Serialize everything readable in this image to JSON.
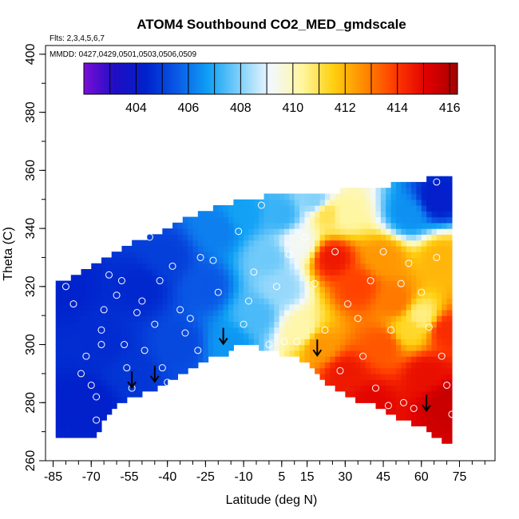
{
  "chart_data": {
    "type": "heatmap",
    "title": "ATOM4 Southbound CO2_MED_gmdscale",
    "subtitle": "Flts: 2,3,4,5,6,7",
    "annotation": "MMDD: 0427,0429,0501,0503,0506,0509",
    "xlabel": "Latitude (deg N)",
    "ylabel": "Theta (C)",
    "xlim": [
      -88,
      89
    ],
    "ylim": [
      260,
      403
    ],
    "x_ticks": [
      -85,
      -70,
      -55,
      -40,
      -25,
      -10,
      5,
      15,
      30,
      45,
      60,
      75
    ],
    "x_tick_labels": [
      "-85",
      "-70",
      "-55",
      "-40",
      "-25",
      "-10",
      "5",
      "15",
      "30",
      "45",
      "60",
      "75"
    ],
    "y_ticks": [
      260,
      280,
      300,
      320,
      340,
      360,
      380,
      400
    ],
    "y_tick_labels": [
      "260",
      "280",
      "300",
      "320",
      "340",
      "360",
      "380",
      "400"
    ],
    "colorbar": {
      "min": 402,
      "max": 416.3,
      "ticks": [
        404,
        406,
        408,
        410,
        412,
        414,
        416
      ],
      "tick_labels": [
        "404",
        "406",
        "408",
        "410",
        "412",
        "414",
        "416"
      ],
      "colors": [
        "#7a0fd6",
        "#1f0dc4",
        "#0022cc",
        "#0a5ae6",
        "#0fa0f5",
        "#7fd0fa",
        "#f2f8ff",
        "#fff6a0",
        "#ffd010",
        "#ff8a00",
        "#ff3a00",
        "#e00000",
        "#a50000"
      ]
    },
    "surface_boundary": {
      "lat": [
        -68,
        -63,
        -57,
        -51,
        -44,
        -37,
        -31,
        -24,
        -17,
        -10,
        -3,
        4,
        10,
        14,
        18,
        22,
        28,
        35,
        42,
        48,
        54,
        60,
        66,
        72
      ],
      "theta": [
        269,
        276,
        281,
        283,
        285,
        289,
        292,
        295,
        297,
        301,
        299,
        297,
        296,
        294,
        291,
        287,
        284,
        281,
        279,
        276,
        274,
        272,
        268,
        266
      ]
    },
    "top_boundary": {
      "lat": [
        -84,
        -76,
        -69,
        -61,
        -52,
        -44,
        -36,
        -28,
        -19,
        -11,
        -2,
        7,
        17,
        27,
        37,
        47,
        57,
        66,
        70
      ],
      "theta": [
        320,
        323,
        327,
        331,
        335,
        337,
        341,
        344,
        347,
        349,
        350,
        351,
        352,
        352,
        353,
        354,
        355,
        357,
        358
      ]
    },
    "field_nodes": [
      {
        "lat": -80,
        "theta": 320,
        "co2": 404.4
      },
      {
        "lat": -65,
        "theta": 300,
        "co2": 404.6
      },
      {
        "lat": -50,
        "theta": 320,
        "co2": 404.5
      },
      {
        "lat": -40,
        "theta": 330,
        "co2": 405.0
      },
      {
        "lat": -55,
        "theta": 290,
        "co2": 404.8
      },
      {
        "lat": -35,
        "theta": 300,
        "co2": 405.2
      },
      {
        "lat": -25,
        "theta": 320,
        "co2": 405.5
      },
      {
        "lat": -20,
        "theta": 340,
        "co2": 406.2
      },
      {
        "lat": -10,
        "theta": 345,
        "co2": 406.8
      },
      {
        "lat": -15,
        "theta": 300,
        "co2": 406.6
      },
      {
        "lat": -5,
        "theta": 310,
        "co2": 407.4
      },
      {
        "lat": 5,
        "theta": 320,
        "co2": 408.2
      },
      {
        "lat": 5,
        "theta": 345,
        "co2": 407.2
      },
      {
        "lat": 12,
        "theta": 335,
        "co2": 409.3
      },
      {
        "lat": 18,
        "theta": 350,
        "co2": 408.0
      },
      {
        "lat": 13,
        "theta": 305,
        "co2": 410.2
      },
      {
        "lat": 20,
        "theta": 300,
        "co2": 412.5
      },
      {
        "lat": 25,
        "theta": 330,
        "co2": 414.6
      },
      {
        "lat": 23,
        "theta": 345,
        "co2": 411.0
      },
      {
        "lat": 30,
        "theta": 345,
        "co2": 410.3
      },
      {
        "lat": 35,
        "theta": 320,
        "co2": 413.8
      },
      {
        "lat": 30,
        "theta": 290,
        "co2": 414.6
      },
      {
        "lat": 45,
        "theta": 300,
        "co2": 413.5
      },
      {
        "lat": 45,
        "theta": 330,
        "co2": 412.5
      },
      {
        "lat": 50,
        "theta": 315,
        "co2": 413.0
      },
      {
        "lat": 55,
        "theta": 305,
        "co2": 411.3
      },
      {
        "lat": 60,
        "theta": 310,
        "co2": 410.6
      },
      {
        "lat": 62,
        "theta": 290,
        "co2": 414.8
      },
      {
        "lat": 55,
        "theta": 345,
        "co2": 406.5
      },
      {
        "lat": 66,
        "theta": 350,
        "co2": 404.2
      },
      {
        "lat": 68,
        "theta": 330,
        "co2": 412.0
      },
      {
        "lat": 70,
        "theta": 280,
        "co2": 415.6
      },
      {
        "lat": 70,
        "theta": 305,
        "co2": 414.2
      },
      {
        "lat": 40,
        "theta": 280,
        "co2": 415.0
      },
      {
        "lat": -70,
        "theta": 280,
        "co2": 404.3
      },
      {
        "lat": 0,
        "theta": 330,
        "co2": 407.8
      }
    ],
    "observations": [
      {
        "lat": -80,
        "theta": 320
      },
      {
        "lat": -77,
        "theta": 314
      },
      {
        "lat": -72,
        "theta": 296
      },
      {
        "lat": -74,
        "theta": 290
      },
      {
        "lat": -70,
        "theta": 286
      },
      {
        "lat": -68,
        "theta": 282
      },
      {
        "lat": -68,
        "theta": 274
      },
      {
        "lat": -66,
        "theta": 300
      },
      {
        "lat": -66,
        "theta": 305
      },
      {
        "lat": -65,
        "theta": 312
      },
      {
        "lat": -63,
        "theta": 324
      },
      {
        "lat": -60,
        "theta": 317
      },
      {
        "lat": -58,
        "theta": 322
      },
      {
        "lat": -57,
        "theta": 300
      },
      {
        "lat": -56,
        "theta": 292
      },
      {
        "lat": -54,
        "theta": 285
      },
      {
        "lat": -52,
        "theta": 311
      },
      {
        "lat": -50,
        "theta": 315
      },
      {
        "lat": -49,
        "theta": 298
      },
      {
        "lat": -47,
        "theta": 337
      },
      {
        "lat": -45,
        "theta": 307
      },
      {
        "lat": -43,
        "theta": 322
      },
      {
        "lat": -42,
        "theta": 292
      },
      {
        "lat": -40,
        "theta": 287
      },
      {
        "lat": -38,
        "theta": 327
      },
      {
        "lat": -35,
        "theta": 312
      },
      {
        "lat": -33,
        "theta": 304
      },
      {
        "lat": -31,
        "theta": 309
      },
      {
        "lat": -28,
        "theta": 298
      },
      {
        "lat": -27,
        "theta": 330
      },
      {
        "lat": -22,
        "theta": 329
      },
      {
        "lat": -20,
        "theta": 318
      },
      {
        "lat": -16,
        "theta": 350
      },
      {
        "lat": -12,
        "theta": 339
      },
      {
        "lat": -10,
        "theta": 307
      },
      {
        "lat": -8,
        "theta": 315
      },
      {
        "lat": -6,
        "theta": 325
      },
      {
        "lat": -3,
        "theta": 348
      },
      {
        "lat": 0,
        "theta": 300
      },
      {
        "lat": 3,
        "theta": 320
      },
      {
        "lat": 6,
        "theta": 301
      },
      {
        "lat": 8,
        "theta": 331
      },
      {
        "lat": 11,
        "theta": 301
      },
      {
        "lat": 14,
        "theta": 337
      },
      {
        "lat": 18,
        "theta": 321
      },
      {
        "lat": 22,
        "theta": 305
      },
      {
        "lat": 26,
        "theta": 332
      },
      {
        "lat": 28,
        "theta": 291
      },
      {
        "lat": 31,
        "theta": 314
      },
      {
        "lat": 35,
        "theta": 309
      },
      {
        "lat": 37,
        "theta": 296
      },
      {
        "lat": 40,
        "theta": 322
      },
      {
        "lat": 42,
        "theta": 285
      },
      {
        "lat": 45,
        "theta": 332
      },
      {
        "lat": 47,
        "theta": 279
      },
      {
        "lat": 48,
        "theta": 305
      },
      {
        "lat": 52,
        "theta": 321
      },
      {
        "lat": 53,
        "theta": 280
      },
      {
        "lat": 55,
        "theta": 328
      },
      {
        "lat": 57,
        "theta": 278
      },
      {
        "lat": 60,
        "theta": 318
      },
      {
        "lat": 63,
        "theta": 306
      },
      {
        "lat": 66,
        "theta": 330
      },
      {
        "lat": 68,
        "theta": 296
      },
      {
        "lat": 70,
        "theta": 286
      },
      {
        "lat": 72,
        "theta": 276
      },
      {
        "lat": 66,
        "theta": 356
      }
    ],
    "arrows": [
      {
        "lat": -54,
        "theta": 288
      },
      {
        "lat": -45,
        "theta": 290
      },
      {
        "lat": -18,
        "theta": 303
      },
      {
        "lat": 19,
        "theta": 299
      },
      {
        "lat": 62,
        "theta": 280
      }
    ],
    "grid": false,
    "legend": "colorbar-top"
  }
}
